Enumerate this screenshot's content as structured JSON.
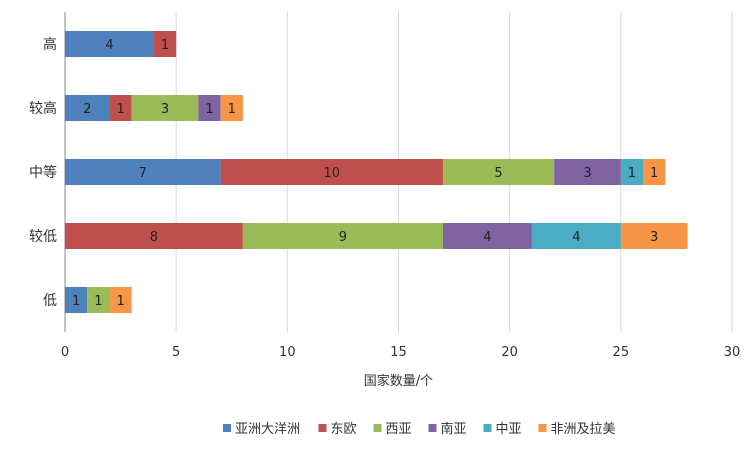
{
  "chart_data": {
    "type": "bar",
    "orientation": "horizontal",
    "stacked": true,
    "categories": [
      "高",
      "较高",
      "中等",
      "较低",
      "低"
    ],
    "series": [
      {
        "name": "亚洲大洋洲",
        "color": "#4F81BD",
        "values": [
          4,
          2,
          7,
          0,
          1
        ]
      },
      {
        "name": "东欧",
        "color": "#C0504D",
        "values": [
          1,
          1,
          10,
          8,
          0
        ]
      },
      {
        "name": "西亚",
        "color": "#9BBB59",
        "values": [
          0,
          3,
          5,
          9,
          1
        ]
      },
      {
        "name": "南亚",
        "color": "#8064A2",
        "values": [
          0,
          1,
          3,
          4,
          0
        ]
      },
      {
        "name": "中亚",
        "color": "#4BACC6",
        "values": [
          0,
          0,
          1,
          4,
          0
        ]
      },
      {
        "name": "非洲及拉美",
        "color": "#F79646",
        "values": [
          0,
          1,
          1,
          3,
          1
        ]
      }
    ],
    "xlim": [
      0,
      30
    ],
    "xticks": [
      0,
      5,
      10,
      15,
      20,
      25,
      30
    ],
    "xlabel": "国家数量/个",
    "ylabel": "",
    "title": "",
    "grid": "vertical",
    "legend_position": "bottom"
  }
}
